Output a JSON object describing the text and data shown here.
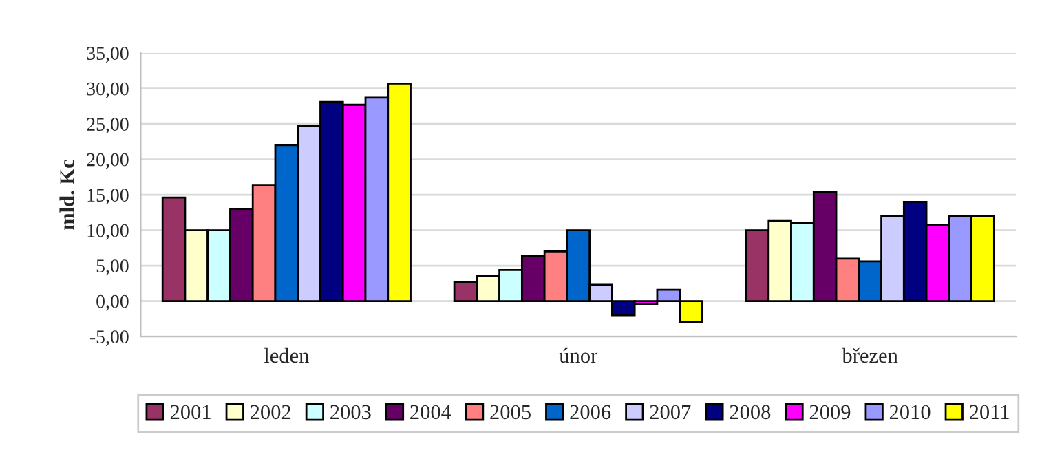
{
  "chart_data": {
    "type": "bar",
    "ylabel": "mld. Kc",
    "categories": [
      "leden",
      "únor",
      "březen"
    ],
    "series": [
      {
        "name": "2001",
        "color": "#993366",
        "values": [
          14.6,
          2.7,
          10.0
        ]
      },
      {
        "name": "2002",
        "color": "#ffffcc",
        "values": [
          10.0,
          3.6,
          11.3
        ]
      },
      {
        "name": "2003",
        "color": "#ccffff",
        "values": [
          10.0,
          4.4,
          11.0
        ]
      },
      {
        "name": "2004",
        "color": "#660066",
        "values": [
          13.0,
          6.4,
          15.4
        ]
      },
      {
        "name": "2005",
        "color": "#ff8080",
        "values": [
          16.3,
          7.0,
          6.0
        ]
      },
      {
        "name": "2006",
        "color": "#0066cc",
        "values": [
          22.0,
          10.0,
          5.6
        ]
      },
      {
        "name": "2007",
        "color": "#ccccff",
        "values": [
          24.7,
          2.3,
          12.0
        ]
      },
      {
        "name": "2008",
        "color": "#000080",
        "values": [
          28.1,
          -2.0,
          14.0
        ]
      },
      {
        "name": "2009",
        "color": "#ff00ff",
        "values": [
          27.7,
          -0.4,
          10.7
        ]
      },
      {
        "name": "2010",
        "color": "#9999ff",
        "values": [
          28.7,
          1.6,
          12.0
        ]
      },
      {
        "name": "2011",
        "color": "#ffff00",
        "values": [
          30.7,
          -3.0,
          12.0
        ]
      }
    ],
    "ylim": [
      -5,
      35
    ],
    "yticks": [
      {
        "value": -5,
        "label": "-5,00"
      },
      {
        "value": 0,
        "label": "0,00"
      },
      {
        "value": 5,
        "label": "5,00"
      },
      {
        "value": 10,
        "label": "10,00"
      },
      {
        "value": 15,
        "label": "15,00"
      },
      {
        "value": 20,
        "label": "20,00"
      },
      {
        "value": 25,
        "label": "25,00"
      },
      {
        "value": 30,
        "label": "30,00"
      },
      {
        "value": 35,
        "label": "35,00"
      }
    ],
    "grid": "y",
    "legend": "bottom"
  }
}
